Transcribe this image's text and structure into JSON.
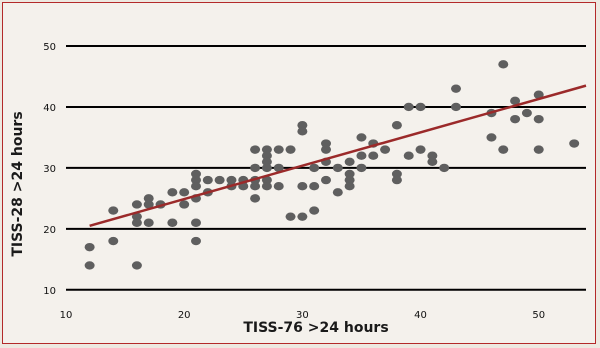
{
  "chart_data": {
    "type": "scatter",
    "xlabel": "TISS-76 >24 hours",
    "ylabel": "TISS-28 >24 hours",
    "xlim": [
      10,
      54
    ],
    "ylim": [
      8,
      50
    ],
    "x_ticks": [
      "10",
      "20",
      "30",
      "40",
      "50"
    ],
    "y_ticks": [
      "10",
      "20",
      "30",
      "40",
      "50"
    ],
    "grid": "horizontal",
    "point_color": "#5f5f5f",
    "line_color": "#9b2a2a",
    "trendline": {
      "x": [
        12,
        54
      ],
      "y": [
        20.5,
        43.5
      ]
    },
    "points": [
      [
        12,
        17
      ],
      [
        12,
        14
      ],
      [
        14,
        23
      ],
      [
        14,
        18
      ],
      [
        16,
        24
      ],
      [
        16,
        22
      ],
      [
        16,
        21
      ],
      [
        16,
        14
      ],
      [
        17,
        25
      ],
      [
        17,
        24
      ],
      [
        17,
        21
      ],
      [
        18,
        24
      ],
      [
        19,
        26
      ],
      [
        19,
        21
      ],
      [
        20,
        26
      ],
      [
        20,
        24
      ],
      [
        21,
        29
      ],
      [
        21,
        28
      ],
      [
        21,
        27
      ],
      [
        21,
        25
      ],
      [
        21,
        21
      ],
      [
        21,
        18
      ],
      [
        22,
        28
      ],
      [
        22,
        26
      ],
      [
        23,
        28
      ],
      [
        24,
        28
      ],
      [
        24,
        27
      ],
      [
        25,
        28
      ],
      [
        25,
        27
      ],
      [
        26,
        33
      ],
      [
        26,
        30
      ],
      [
        26,
        28
      ],
      [
        26,
        27
      ],
      [
        26,
        25
      ],
      [
        27,
        33
      ],
      [
        27,
        32
      ],
      [
        27,
        31
      ],
      [
        27,
        30
      ],
      [
        27,
        28
      ],
      [
        27,
        27
      ],
      [
        28,
        33
      ],
      [
        28,
        30
      ],
      [
        28,
        27
      ],
      [
        29,
        33
      ],
      [
        29,
        22
      ],
      [
        30,
        37
      ],
      [
        30,
        36
      ],
      [
        30,
        27
      ],
      [
        30,
        22
      ],
      [
        31,
        30
      ],
      [
        31,
        27
      ],
      [
        31,
        23
      ],
      [
        32,
        34
      ],
      [
        32,
        33
      ],
      [
        32,
        31
      ],
      [
        32,
        28
      ],
      [
        33,
        30
      ],
      [
        33,
        26
      ],
      [
        34,
        31
      ],
      [
        34,
        29
      ],
      [
        34,
        28
      ],
      [
        34,
        27
      ],
      [
        35,
        35
      ],
      [
        35,
        32
      ],
      [
        35,
        30
      ],
      [
        36,
        34
      ],
      [
        36,
        32
      ],
      [
        37,
        33
      ],
      [
        38,
        37
      ],
      [
        38,
        29
      ],
      [
        38,
        28
      ],
      [
        39,
        40
      ],
      [
        39,
        32
      ],
      [
        40,
        40
      ],
      [
        40,
        33
      ],
      [
        41,
        32
      ],
      [
        41,
        31
      ],
      [
        42,
        30
      ],
      [
        43,
        43
      ],
      [
        43,
        40
      ],
      [
        46,
        39
      ],
      [
        46,
        35
      ],
      [
        47,
        47
      ],
      [
        47,
        33
      ],
      [
        48,
        41
      ],
      [
        48,
        38
      ],
      [
        49,
        39
      ],
      [
        50,
        42
      ],
      [
        50,
        38
      ],
      [
        50,
        33
      ],
      [
        53,
        34
      ]
    ]
  }
}
